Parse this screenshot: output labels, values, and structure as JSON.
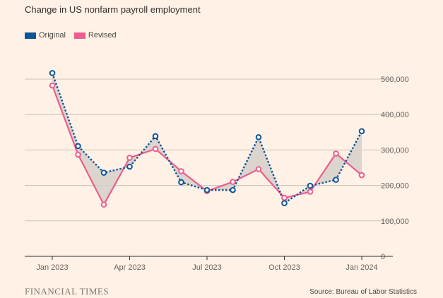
{
  "title": "Change in US nonfarm payroll employment",
  "legend": {
    "original": "Original",
    "revised": "Revised"
  },
  "colors": {
    "background": "#fff1e5",
    "original": "#0f5499",
    "revised": "#eb5e8d",
    "fill": "#d6d0c9",
    "grid": "#ccc1b7",
    "axis": "#33302e",
    "text": "#66605c"
  },
  "footer": {
    "brand": "FINANCIAL TIMES",
    "source": "Source: Bureau of Labor Statistics"
  },
  "chart_data": {
    "type": "line",
    "title": "Change in US nonfarm payroll employment",
    "x": [
      "2023-01",
      "2023-02",
      "2023-03",
      "2023-04",
      "2023-05",
      "2023-06",
      "2023-07",
      "2023-08",
      "2023-09",
      "2023-10",
      "2023-11",
      "2023-12",
      "2024-01"
    ],
    "x_tick_labels": [
      "Jan 2023",
      "Apr 2023",
      "Jul 2023",
      "Oct 2023",
      "Jan 2024"
    ],
    "x_tick_indices": [
      0,
      3,
      6,
      9,
      12
    ],
    "series": [
      {
        "name": "Original",
        "values": [
          517000,
          311000,
          236000,
          253000,
          339000,
          209000,
          187000,
          187000,
          336000,
          150000,
          199000,
          216000,
          353000
        ],
        "style": "dotted",
        "color": "#0f5499"
      },
      {
        "name": "Revised",
        "values": [
          482000,
          287000,
          146000,
          278000,
          303000,
          240000,
          184000,
          210000,
          246000,
          165000,
          182000,
          290000,
          229000
        ],
        "style": "solid",
        "color": "#eb5e8d"
      }
    ],
    "ylim": [
      0,
      500000
    ],
    "y_ticks": [
      0,
      100000,
      200000,
      300000,
      400000,
      500000
    ],
    "y_tick_labels": [
      "0",
      "100,000",
      "200,000",
      "300,000",
      "400,000",
      "500,000"
    ],
    "y_axis_side": "right",
    "grid": true,
    "legend_position": "top-left",
    "shaded_gap_between_series": true,
    "xlabel": "",
    "ylabel": ""
  }
}
